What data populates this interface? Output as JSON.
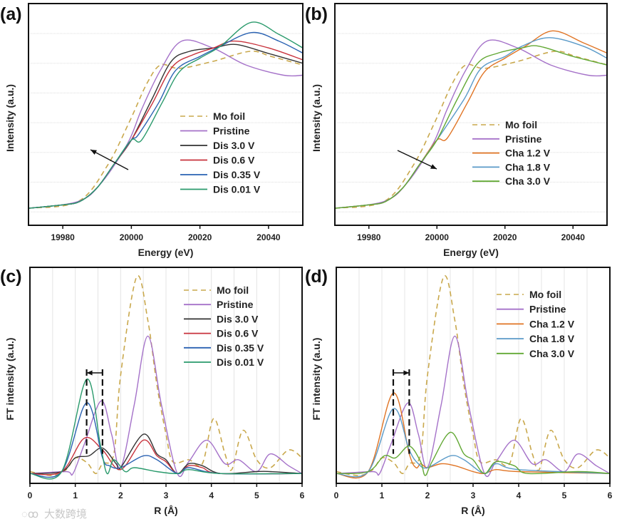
{
  "watermark": "大数跨境",
  "chart_data": [
    {
      "panel_label": "(a)",
      "type": "line",
      "xlabel": "Energy (eV)",
      "ylabel": "Intensity (a.u.)",
      "xlim": [
        19970,
        20050
      ],
      "ylim": [
        -0.1,
        1.2
      ],
      "xticks": [
        19980,
        20000,
        20020,
        20040
      ],
      "xtick_labels": [
        "19980",
        "20000",
        "20020",
        "20040"
      ],
      "grid": "horizontal",
      "legend_position": "center-right",
      "annotation": "arrow pointing up-left (edge shift to lower energy)",
      "series": [
        {
          "name": "Mo foil",
          "color": "#c9a84c",
          "dashed": true,
          "x": [
            19970,
            19984.5,
            19993,
            19999.5,
            20004.5,
            20008.5,
            20014,
            20023.6,
            20034.6,
            20040.8,
            20050
          ],
          "y": [
            0,
            0.04,
            0.25,
            0.51,
            0.73,
            0.84,
            0.82,
            0.86,
            0.92,
            0.89,
            0.84
          ]
        },
        {
          "name": "Pristine",
          "color": "#a572c9",
          "dashed": false,
          "x": [
            19970,
            19984.5,
            19991.3,
            19998.9,
            20003,
            20008.5,
            20014.7,
            20023.7,
            20033.4,
            20044.4,
            20050
          ],
          "y": [
            0,
            0.04,
            0.15,
            0.38,
            0.58,
            0.81,
            0.98,
            0.94,
            0.84,
            0.78,
            0.78
          ]
        },
        {
          "name": "Dis 3.0 V",
          "color": "#333333",
          "dashed": false,
          "x": [
            19970,
            19980,
            19985,
            19990,
            19995,
            20000,
            20006,
            20011.6,
            20017,
            20024,
            20030.6,
            20039.6,
            20050
          ],
          "y": [
            0,
            0.02,
            0.04,
            0.12,
            0.26,
            0.4,
            0.64,
            0.86,
            0.92,
            0.94,
            0.96,
            0.91,
            0.85
          ]
        },
        {
          "name": "Dis 0.6 V",
          "color": "#c8323c",
          "dashed": false,
          "x": [
            19970,
            19980,
            19985,
            19990,
            19995,
            20000,
            20006,
            20012,
            20018,
            20024,
            20030,
            20040,
            20050
          ],
          "y": [
            0,
            0.02,
            0.04,
            0.12,
            0.26,
            0.4,
            0.61,
            0.83,
            0.9,
            0.94,
            0.98,
            0.94,
            0.87
          ]
        },
        {
          "name": "Dis 0.35 V",
          "color": "#2a62b2",
          "dashed": false,
          "x": [
            19970,
            19980,
            19985,
            19990,
            19995,
            20000,
            20002,
            20008,
            20013,
            20020,
            20025,
            20035,
            20043,
            20050
          ],
          "y": [
            0,
            0.02,
            0.04,
            0.12,
            0.26,
            0.4,
            0.43,
            0.62,
            0.81,
            0.89,
            0.94,
            1.03,
            0.98,
            0.91
          ]
        },
        {
          "name": "Dis 0.01 V",
          "color": "#2a9a6c",
          "dashed": false,
          "x": [
            19970,
            19980,
            19985,
            19990,
            19995,
            20000,
            20003,
            20009,
            20014,
            20020,
            20026,
            20035,
            20043,
            20050
          ],
          "y": [
            0,
            0.02,
            0.04,
            0.12,
            0.26,
            0.4,
            0.4,
            0.62,
            0.8,
            0.88,
            0.95,
            1.09,
            1.02,
            0.94
          ]
        }
      ]
    },
    {
      "panel_label": "(b)",
      "type": "line",
      "xlabel": "Energy (eV)",
      "ylabel": "Intensity (a.u.)",
      "xlim": [
        19970,
        20050
      ],
      "ylim": [
        -0.1,
        1.2
      ],
      "xticks": [
        19980,
        20000,
        20020,
        20040
      ],
      "xtick_labels": [
        "19980",
        "20000",
        "20020",
        "20040"
      ],
      "grid": "horizontal",
      "legend_position": "center-right",
      "annotation": "arrow pointing down-right (edge shift to higher energy)",
      "series": [
        {
          "name": "Mo foil",
          "color": "#c9a84c",
          "dashed": true,
          "x": [
            19970,
            19984.5,
            19993,
            19999.5,
            20004.5,
            20008.5,
            20014,
            20023.6,
            20034.6,
            20040.8,
            20050
          ],
          "y": [
            0,
            0.04,
            0.25,
            0.51,
            0.73,
            0.84,
            0.82,
            0.86,
            0.92,
            0.89,
            0.84
          ]
        },
        {
          "name": "Pristine",
          "color": "#a572c9",
          "dashed": false,
          "x": [
            19970,
            19984.5,
            19991.3,
            19998.9,
            20003,
            20008.5,
            20014.7,
            20023.7,
            20033.4,
            20044.4,
            20050
          ],
          "y": [
            0,
            0.04,
            0.15,
            0.38,
            0.58,
            0.81,
            0.98,
            0.94,
            0.84,
            0.78,
            0.78
          ]
        },
        {
          "name": "Cha 1.2 V",
          "color": "#e07424",
          "dashed": false,
          "x": [
            19970,
            19980,
            19985,
            19990,
            19995,
            20000,
            20003,
            20009,
            20014,
            20020,
            20026,
            20034,
            20043,
            20050
          ],
          "y": [
            0,
            0.02,
            0.04,
            0.12,
            0.26,
            0.4,
            0.41,
            0.62,
            0.8,
            0.88,
            0.95,
            1.04,
            0.97,
            0.91
          ]
        },
        {
          "name": "Cha 1.8 V",
          "color": "#5a9ac8",
          "dashed": false,
          "x": [
            19970,
            19980,
            19985,
            19990,
            19995,
            20000,
            20008,
            20013,
            20020,
            20025,
            20033,
            20043,
            20050
          ],
          "y": [
            0,
            0.02,
            0.04,
            0.12,
            0.26,
            0.4,
            0.64,
            0.82,
            0.89,
            0.95,
            1.0,
            0.95,
            0.88
          ]
        },
        {
          "name": "Cha 3.0 V",
          "color": "#62a834",
          "dashed": false,
          "x": [
            19970,
            19980,
            19985,
            19990,
            19995,
            20000,
            20006,
            20012,
            20018,
            20025,
            20030,
            20040,
            20050
          ],
          "y": [
            0,
            0.02,
            0.04,
            0.12,
            0.26,
            0.4,
            0.64,
            0.85,
            0.91,
            0.94,
            0.95,
            0.89,
            0.84
          ]
        }
      ]
    },
    {
      "panel_label": "(c)",
      "type": "line",
      "xlabel": "R (Å)",
      "ylabel": "FT intensity (a.u.)",
      "xlim": [
        0,
        6
      ],
      "ylim": [
        -0.05,
        1.05
      ],
      "xticks": [
        0,
        1,
        2,
        3,
        4,
        5,
        6
      ],
      "xtick_labels": [
        "0",
        "1",
        "2",
        "3",
        "4",
        "5",
        "6"
      ],
      "grid": "vertical",
      "legend_position": "top-right",
      "annotation": "dashed markers at R=1.25 and R=1.6 with left-pointing arrow",
      "marker_r": [
        1.25,
        1.6
      ],
      "arrow_direction": "left",
      "series": [
        {
          "name": "Mo foil",
          "color": "#c9a84c",
          "dashed": true,
          "x": [
            0,
            0.5,
            0.8,
            1.0,
            1.26,
            1.45,
            1.6,
            1.85,
            2.0,
            2.35,
            2.6,
            2.8,
            3.0,
            3.15,
            3.5,
            3.8,
            4.05,
            4.3,
            4.45,
            4.7,
            5.0,
            5.3,
            5.7,
            6.0
          ],
          "y": [
            0.01,
            -0.01,
            0.02,
            0.08,
            0.055,
            0,
            0.05,
            0.1,
            0.5,
            1.0,
            0.78,
            0.45,
            0.2,
            0.06,
            0.07,
            0.05,
            0.28,
            0.1,
            0.02,
            0.22,
            0.07,
            0.03,
            0.12,
            0.08
          ]
        },
        {
          "name": "Pristine",
          "color": "#a572c9",
          "dashed": false,
          "x": [
            0,
            0.8,
            0.95,
            1.2,
            1.57,
            1.8,
            2.0,
            2.3,
            2.6,
            2.9,
            3.25,
            3.5,
            3.9,
            4.3,
            4.6,
            5.0,
            5.3,
            5.7,
            6.0
          ],
          "y": [
            0,
            0.01,
            0,
            0.15,
            0.37,
            0.2,
            0.03,
            0.35,
            0.7,
            0.35,
            0,
            0.06,
            0.17,
            0.05,
            0.07,
            0.01,
            0.1,
            0.04,
            0
          ]
        },
        {
          "name": "Dis  3.0 V",
          "color": "#333333",
          "dashed": false,
          "x": [
            0,
            0.7,
            1.0,
            1.3,
            1.6,
            1.9,
            2.0,
            2.5,
            2.8,
            3.0,
            3.25,
            3.5,
            3.8,
            4.2,
            5.0,
            5.3,
            6.0
          ],
          "y": [
            0,
            0.01,
            0.08,
            0.09,
            0.13,
            0.05,
            0.03,
            0.2,
            0.1,
            0.07,
            0,
            0.05,
            0.04,
            0,
            0.01,
            0.01,
            0
          ]
        },
        {
          "name": "Dis  0.6 V",
          "color": "#c8323c",
          "dashed": false,
          "x": [
            0,
            0.7,
            1.2,
            1.6,
            2.0,
            2.5,
            2.8,
            3.0,
            3.25,
            3.5,
            3.8,
            4.2,
            6.0
          ],
          "y": [
            0,
            0.01,
            0.18,
            0.12,
            0.02,
            0.17,
            0.09,
            0.06,
            0,
            0.04,
            0.03,
            0,
            0
          ]
        },
        {
          "name": "Dis  0.35 V",
          "color": "#2a62b2",
          "dashed": false,
          "x": [
            0,
            0.7,
            1.25,
            1.6,
            1.75,
            2.0,
            2.5,
            2.8,
            3.25,
            3.5,
            4.2,
            6.0
          ],
          "y": [
            0,
            0.01,
            0.36,
            0.08,
            0.04,
            0.03,
            0.09,
            0.07,
            0,
            0.03,
            0,
            0
          ]
        },
        {
          "name": "Dis  0.01 V",
          "color": "#2a9a6c",
          "dashed": false,
          "x": [
            0,
            0.7,
            1.25,
            1.55,
            1.7,
            1.85,
            2.1,
            2.3,
            2.8,
            3.25,
            3.5,
            4.2,
            6.0
          ],
          "y": [
            0,
            0.01,
            0.48,
            0.15,
            0,
            0.07,
            0.01,
            0.03,
            0.01,
            0,
            0.02,
            0,
            0
          ]
        }
      ]
    },
    {
      "panel_label": "(d)",
      "type": "line",
      "xlabel": "R (Å)",
      "ylabel": "FT intensity (a.u.)",
      "xlim": [
        0,
        6
      ],
      "ylim": [
        -0.05,
        1.05
      ],
      "xticks": [
        0,
        1,
        2,
        3,
        4,
        5,
        6
      ],
      "xtick_labels": [
        "0",
        "1",
        "2",
        "3",
        "4",
        "5",
        "6"
      ],
      "grid": "vertical",
      "legend_position": "top-right",
      "annotation": "dashed markers at R=1.25 and R=1.6 with right-pointing arrow",
      "marker_r": [
        1.25,
        1.6
      ],
      "arrow_direction": "right",
      "series": [
        {
          "name": "Mo foil",
          "color": "#c9a84c",
          "dashed": true,
          "x": [
            0,
            0.5,
            0.8,
            1.0,
            1.26,
            1.45,
            1.6,
            1.85,
            2.0,
            2.35,
            2.6,
            2.8,
            3.0,
            3.15,
            3.5,
            3.8,
            4.05,
            4.3,
            4.45,
            4.7,
            5.0,
            5.3,
            5.7,
            6.0
          ],
          "y": [
            0.01,
            -0.01,
            0.02,
            0.08,
            0.055,
            0,
            0.05,
            0.1,
            0.5,
            1.0,
            0.78,
            0.45,
            0.2,
            0.06,
            0.07,
            0.05,
            0.28,
            0.1,
            0.02,
            0.22,
            0.07,
            0.03,
            0.12,
            0.08
          ]
        },
        {
          "name": "Pristine",
          "color": "#a572c9",
          "dashed": false,
          "x": [
            0,
            0.8,
            0.95,
            1.2,
            1.57,
            1.8,
            2.0,
            2.3,
            2.6,
            2.9,
            3.25,
            3.5,
            3.9,
            4.3,
            4.6,
            5.0,
            5.3,
            5.7,
            6.0
          ],
          "y": [
            0,
            0.01,
            0,
            0.15,
            0.36,
            0.2,
            0.03,
            0.35,
            0.7,
            0.35,
            0,
            0.06,
            0.17,
            0.05,
            0.07,
            0.01,
            0.1,
            0.04,
            0
          ]
        },
        {
          "name": "Cha 1.2 V",
          "color": "#e07424",
          "dashed": false,
          "x": [
            0,
            0.7,
            1.25,
            1.6,
            1.75,
            1.85,
            2.0,
            2.3,
            2.6,
            3.0,
            3.25,
            3.5,
            4.0,
            6.0
          ],
          "y": [
            0,
            0.01,
            0.41,
            0.1,
            0.03,
            0.05,
            0.03,
            0.05,
            0.04,
            0.01,
            0,
            0.02,
            0.01,
            0
          ]
        },
        {
          "name": "Cha 1.8 V",
          "color": "#5a9ac8",
          "dashed": false,
          "x": [
            0,
            0.7,
            1.25,
            1.6,
            1.8,
            2.0,
            2.5,
            2.8,
            3.25,
            3.5,
            4.0,
            6.0
          ],
          "y": [
            0,
            0.01,
            0.33,
            0.12,
            0.05,
            0.03,
            0.09,
            0.07,
            0,
            0.05,
            0.02,
            0
          ]
        },
        {
          "name": "Cha 3.0 V",
          "color": "#62a834",
          "dashed": false,
          "x": [
            0,
            0.7,
            1.05,
            1.3,
            1.6,
            1.85,
            1.95,
            2.1,
            2.5,
            2.8,
            3.0,
            3.25,
            3.5,
            3.9,
            4.2,
            5.3,
            6.0
          ],
          "y": [
            0,
            0.01,
            0.09,
            0.08,
            0.14,
            0.06,
            -0.01,
            0.06,
            0.21,
            0.1,
            0.07,
            0,
            0.06,
            0.04,
            0,
            0.01,
            0
          ]
        }
      ]
    }
  ]
}
